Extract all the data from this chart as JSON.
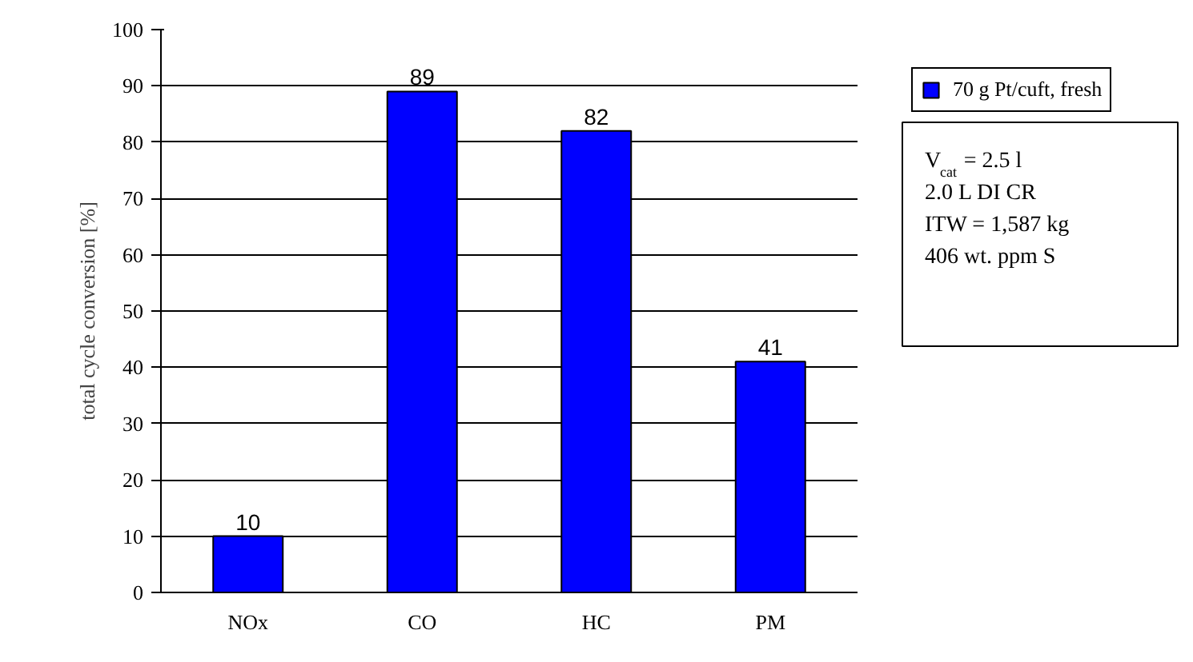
{
  "chart_data": {
    "type": "bar",
    "ylabel": "total cycle conversion [%]",
    "categories": [
      "NOx",
      "CO",
      "HC",
      "PM"
    ],
    "series": [
      {
        "name": "70 g Pt/cuft, fresh",
        "color": "#0000ff",
        "values": [
          10,
          89,
          82,
          41
        ]
      }
    ],
    "ylim": [
      0,
      100
    ],
    "yticks": [
      0,
      10,
      20,
      30,
      40,
      50,
      60,
      70,
      80,
      90,
      100
    ],
    "grid": "y",
    "legend": "right",
    "data_labels": true,
    "annotations": [
      "V$_{cat}$ = 2.5 l",
      "2.0 L DI CR",
      "ITW = 1,587 kg",
      "406 wt. ppm S"
    ]
  }
}
